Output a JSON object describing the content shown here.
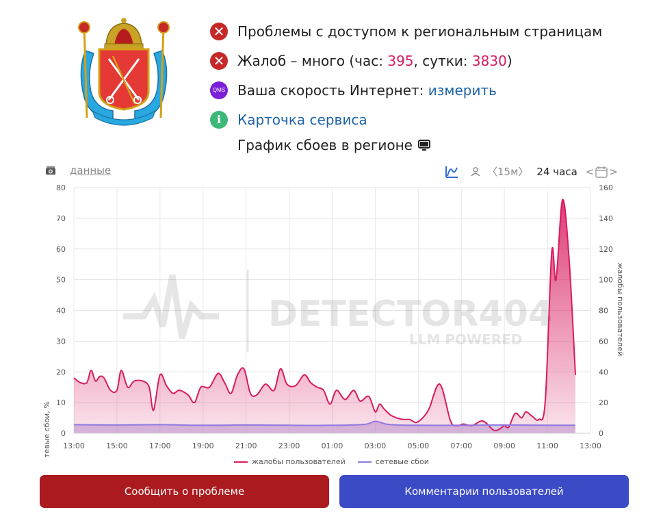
{
  "status": {
    "access_problems": "Проблемы с доступом к региональным страницам",
    "complaints_prefix": "Жалоб – много (час: ",
    "complaints_hour": "395",
    "complaints_mid": ", сутки: ",
    "complaints_day": "3830",
    "complaints_suffix": ")",
    "speed_label": "Ваша скорость Интернет: ",
    "speed_link": "измерить",
    "qms_icon_text": "QMS",
    "service_card": "Карточка сервиса"
  },
  "chart_title": "График сбоев в регионе",
  "toolbar": {
    "data_link": "данные",
    "interval_15m": "〈15м〉",
    "interval_24h": "24 часа"
  },
  "watermark": {
    "brand": "DETECTOR404",
    "tagline": "LLM POWERED"
  },
  "colors": {
    "complaints": "#d81b60",
    "network": "#8e7ae0",
    "report_button": "#ab1a1e",
    "comments_button": "#3b4bc6"
  },
  "chart_data": {
    "type": "area",
    "x_ticks": [
      "13:00",
      "15:00",
      "17:00",
      "19:00",
      "21:00",
      "23:00",
      "01:00",
      "03:00",
      "05:00",
      "07:00",
      "09:00",
      "11:00",
      "13:00"
    ],
    "ylabel_left": "сетевые сбои, %",
    "ylabel_right": "жалобы пользователей",
    "ylim_left": [
      0,
      80
    ],
    "ylim_right": [
      0,
      160
    ],
    "yticks_left": [
      "0",
      "10",
      "20",
      "30",
      "40",
      "50",
      "60",
      "70",
      "80"
    ],
    "yticks_right": [
      "0",
      "20",
      "40",
      "60",
      "80",
      "100",
      "120",
      "140",
      "160"
    ],
    "grid": true,
    "legend_position": "bottom",
    "series": [
      {
        "name": "жалобы пользователей",
        "axis": "right",
        "x_hours": [
          0,
          0.3,
          0.6,
          0.8,
          1.0,
          1.2,
          1.4,
          1.7,
          2.0,
          2.2,
          2.5,
          2.8,
          3.2,
          3.5,
          3.7,
          4.0,
          4.3,
          4.6,
          4.9,
          5.3,
          5.6,
          5.9,
          6.3,
          6.7,
          7.0,
          7.3,
          7.6,
          7.9,
          8.2,
          8.5,
          8.9,
          9.3,
          9.6,
          9.9,
          10.3,
          10.7,
          11.0,
          11.3,
          11.6,
          11.9,
          12.2,
          12.6,
          13.0,
          13.3,
          13.7,
          14.0,
          14.2,
          14.4,
          14.7,
          15.0,
          15.3,
          15.6,
          15.9,
          16.2,
          16.5,
          17.0,
          17.5,
          17.8,
          18.1,
          18.5,
          19.0,
          19.5,
          19.8,
          20.0,
          20.2,
          20.5,
          20.8,
          21.0,
          21.3,
          21.6,
          21.9,
          22.2,
          22.4,
          22.7,
          23.0,
          23.3
        ],
        "values": [
          36,
          33,
          33,
          41,
          34,
          37,
          36,
          28,
          28,
          41,
          30,
          34,
          34,
          30,
          15,
          38,
          31,
          26,
          28,
          25,
          20,
          30,
          30,
          39,
          33,
          26,
          38,
          42,
          26,
          25,
          32,
          28,
          42,
          32,
          31,
          38,
          33,
          30,
          28,
          19,
          28,
          22,
          28,
          21,
          24,
          14,
          19,
          16,
          12,
          10,
          9,
          9,
          7,
          10,
          16,
          32,
          8,
          5,
          6,
          5,
          8,
          2,
          3,
          5,
          4,
          13,
          10,
          14,
          11,
          9,
          21,
          118,
          100,
          152,
          115,
          38
        ]
      },
      {
        "name": "сетевые сбои",
        "axis": "left",
        "x_hours": [
          0,
          2,
          4,
          6,
          8,
          10,
          12,
          13.5,
          14,
          14.5,
          15,
          16,
          18,
          20,
          22,
          23.3
        ],
        "values": [
          2.8,
          2.7,
          2.8,
          2.6,
          2.7,
          2.6,
          2.6,
          2.9,
          3.9,
          3.0,
          2.7,
          2.6,
          2.6,
          2.7,
          2.6,
          2.6
        ]
      }
    ]
  },
  "buttons": {
    "report": "Сообщить о проблеме",
    "comments": "Комментарии пользователей"
  }
}
